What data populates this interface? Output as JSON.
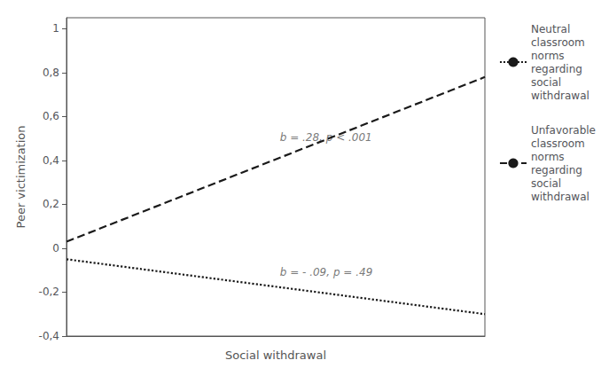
{
  "chart_data": {
    "type": "line",
    "xlabel": "Social withdrawal",
    "ylabel": "Peer victimization",
    "x": [
      -2,
      3
    ],
    "xlim": [
      -2,
      3
    ],
    "ylim": [
      -0.4,
      1.05
    ],
    "yticks": [
      {
        "value": -0.4,
        "label": "-0,4"
      },
      {
        "value": -0.2,
        "label": "-0,2"
      },
      0,
      {
        "value": 0.2,
        "label": "0,2"
      },
      {
        "value": 0.4,
        "label": "0,4"
      },
      {
        "value": 0.6,
        "label": "0,6"
      },
      {
        "value": 0.8,
        "label": "0,8"
      },
      1
    ],
    "tick_labels": "y",
    "grid": false,
    "legend": "right",
    "series": [
      {
        "name": "Unfavorable\nclassroom\nnorms\nregarding\nsocial\nwithdrawal",
        "color": "#1a1a1a",
        "line_style": "dashed",
        "values": [
          0.03,
          0.78
        ]
      },
      {
        "name": "Neutral\nclassroom\nnorms\nregarding\nsocial\nwithdrawal",
        "color": "#1a1a1a",
        "line_style": "dotted",
        "values": [
          -0.05,
          -0.3
        ]
      }
    ],
    "annotations": [
      {
        "text": "b = .28, p < .001",
        "x": 0.55,
        "y": 0.48
      },
      {
        "text": "b = - .09, p = .49",
        "x": 0.55,
        "y": -0.135
      }
    ]
  }
}
